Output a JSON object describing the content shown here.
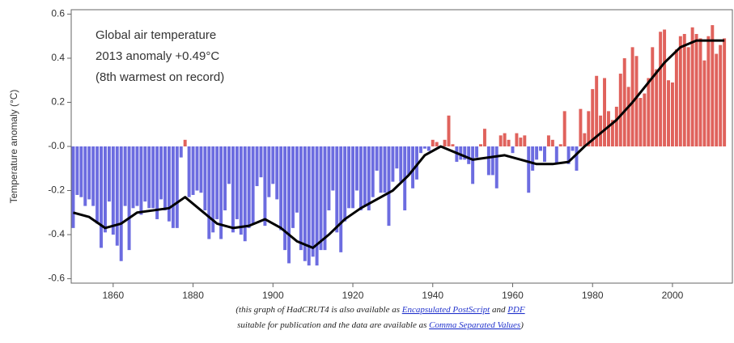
{
  "chart_data": {
    "type": "bar_line",
    "ylabel": "Temperature anomaly (°C)",
    "annotations": [
      "Global air temperature",
      "2013 anomaly +0.49°C",
      "(8th warmest on record)"
    ],
    "caption": [
      [
        {
          "text": "(this graph of HadCRUT4 is also available as "
        },
        {
          "text": "Encapsulated PostScript",
          "link": true
        },
        {
          "text": " and "
        },
        {
          "text": "PDF",
          "link": true
        }
      ],
      [
        {
          "text": "suitable for publication and the data are available as "
        },
        {
          "text": "Comma Separated Values",
          "link": true
        },
        {
          "text": ")"
        }
      ]
    ],
    "xlim": [
      1849.5,
      2015
    ],
    "xticks": [
      1860,
      1880,
      1900,
      1920,
      1940,
      1960,
      1980,
      2000
    ],
    "ylim": [
      -0.62,
      0.62
    ],
    "yticks": [
      0.6,
      0.4,
      0.2,
      {
        "value": 0,
        "label": "-0.0"
      },
      -0.2,
      -0.4,
      -0.6
    ],
    "bar_colors": {
      "positive": "#e0625c",
      "negative": "#6c6ce0"
    },
    "x": [
      1850,
      1851,
      1852,
      1853,
      1854,
      1855,
      1856,
      1857,
      1858,
      1859,
      1860,
      1861,
      1862,
      1863,
      1864,
      1865,
      1866,
      1867,
      1868,
      1869,
      1870,
      1871,
      1872,
      1873,
      1874,
      1875,
      1876,
      1877,
      1878,
      1879,
      1880,
      1881,
      1882,
      1883,
      1884,
      1885,
      1886,
      1887,
      1888,
      1889,
      1890,
      1891,
      1892,
      1893,
      1894,
      1895,
      1896,
      1897,
      1898,
      1899,
      1900,
      1901,
      1902,
      1903,
      1904,
      1905,
      1906,
      1907,
      1908,
      1909,
      1910,
      1911,
      1912,
      1913,
      1914,
      1915,
      1916,
      1917,
      1918,
      1919,
      1920,
      1921,
      1922,
      1923,
      1924,
      1925,
      1926,
      1927,
      1928,
      1929,
      1930,
      1931,
      1932,
      1933,
      1934,
      1935,
      1936,
      1937,
      1938,
      1939,
      1940,
      1941,
      1942,
      1943,
      1944,
      1945,
      1946,
      1947,
      1948,
      1949,
      1950,
      1951,
      1952,
      1953,
      1954,
      1955,
      1956,
      1957,
      1958,
      1959,
      1960,
      1961,
      1962,
      1963,
      1964,
      1965,
      1966,
      1967,
      1968,
      1969,
      1970,
      1971,
      1972,
      1973,
      1974,
      1975,
      1976,
      1977,
      1978,
      1979,
      1980,
      1981,
      1982,
      1983,
      1984,
      1985,
      1986,
      1987,
      1988,
      1989,
      1990,
      1991,
      1992,
      1993,
      1994,
      1995,
      1996,
      1997,
      1998,
      1999,
      2000,
      2001,
      2002,
      2003,
      2004,
      2005,
      2006,
      2007,
      2008,
      2009,
      2010,
      2011,
      2012,
      2013
    ],
    "values": [
      -0.37,
      -0.22,
      -0.23,
      -0.27,
      -0.24,
      -0.27,
      -0.35,
      -0.46,
      -0.39,
      -0.25,
      -0.4,
      -0.45,
      -0.52,
      -0.27,
      -0.47,
      -0.28,
      -0.27,
      -0.31,
      -0.25,
      -0.28,
      -0.28,
      -0.33,
      -0.24,
      -0.29,
      -0.34,
      -0.37,
      -0.37,
      -0.05,
      0.03,
      -0.23,
      -0.22,
      -0.2,
      -0.21,
      -0.29,
      -0.42,
      -0.39,
      -0.33,
      -0.42,
      -0.29,
      -0.17,
      -0.39,
      -0.33,
      -0.4,
      -0.43,
      -0.37,
      -0.35,
      -0.18,
      -0.14,
      -0.36,
      -0.23,
      -0.17,
      -0.24,
      -0.38,
      -0.47,
      -0.53,
      -0.37,
      -0.3,
      -0.47,
      -0.52,
      -0.54,
      -0.5,
      -0.54,
      -0.47,
      -0.47,
      -0.29,
      -0.2,
      -0.39,
      -0.48,
      -0.34,
      -0.28,
      -0.28,
      -0.2,
      -0.29,
      -0.27,
      -0.29,
      -0.23,
      -0.11,
      -0.21,
      -0.21,
      -0.36,
      -0.16,
      -0.1,
      -0.16,
      -0.29,
      -0.13,
      -0.19,
      -0.15,
      -0.03,
      -0.01,
      -0.02,
      0.03,
      0.02,
      0.0,
      0.03,
      0.14,
      0.01,
      -0.07,
      -0.06,
      -0.06,
      -0.08,
      -0.17,
      -0.05,
      0.01,
      0.08,
      -0.13,
      -0.13,
      -0.19,
      0.05,
      0.06,
      0.03,
      -0.03,
      0.06,
      0.04,
      0.05,
      -0.21,
      -0.11,
      -0.06,
      -0.02,
      -0.07,
      0.05,
      0.03,
      -0.08,
      0.01,
      0.16,
      -0.08,
      -0.02,
      -0.11,
      0.17,
      0.06,
      0.16,
      0.26,
      0.32,
      0.14,
      0.31,
      0.16,
      0.12,
      0.18,
      0.33,
      0.4,
      0.27,
      0.45,
      0.41,
      0.22,
      0.24,
      0.31,
      0.45,
      0.35,
      0.52,
      0.53,
      0.3,
      0.29,
      0.44,
      0.5,
      0.51,
      0.45,
      0.54,
      0.51,
      0.49,
      0.39,
      0.5,
      0.55,
      0.42,
      0.46,
      0.49
    ],
    "smooth": {
      "color": "#000000",
      "x": [
        1850,
        1854,
        1858,
        1862,
        1866,
        1870,
        1874,
        1878,
        1882,
        1886,
        1890,
        1894,
        1898,
        1902,
        1906,
        1910,
        1914,
        1918,
        1922,
        1926,
        1930,
        1934,
        1938,
        1942,
        1946,
        1950,
        1954,
        1958,
        1962,
        1966,
        1970,
        1974,
        1978,
        1982,
        1986,
        1990,
        1994,
        1998,
        2002,
        2006,
        2010,
        2013
      ],
      "values": [
        -0.3,
        -0.32,
        -0.37,
        -0.35,
        -0.3,
        -0.29,
        -0.28,
        -0.23,
        -0.29,
        -0.35,
        -0.37,
        -0.36,
        -0.33,
        -0.37,
        -0.43,
        -0.46,
        -0.4,
        -0.33,
        -0.28,
        -0.24,
        -0.2,
        -0.13,
        -0.04,
        0.0,
        -0.03,
        -0.06,
        -0.05,
        -0.04,
        -0.06,
        -0.08,
        -0.08,
        -0.07,
        0.0,
        0.06,
        0.12,
        0.2,
        0.29,
        0.38,
        0.45,
        0.48,
        0.48,
        0.48
      ]
    }
  }
}
